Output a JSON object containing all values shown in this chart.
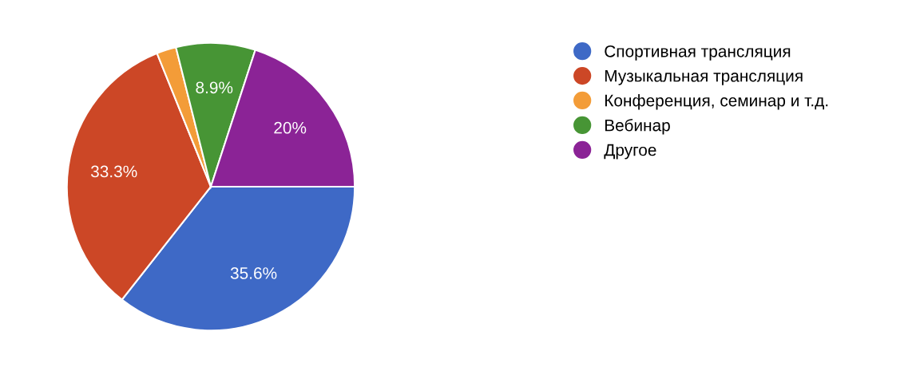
{
  "chart_data": {
    "type": "pie",
    "categories": [
      "Спортивная трансляция",
      "Музыкальная трансляция",
      "Конференция, семинар и т.д.",
      "Вебинар",
      "Другое"
    ],
    "values": [
      35.6,
      33.3,
      2.2,
      8.9,
      20
    ],
    "colors": [
      "#3e69c6",
      "#cc4726",
      "#f39c38",
      "#479535",
      "#8b2396"
    ],
    "value_labels": [
      "35.6%",
      "33.3%",
      null,
      "8.9%",
      "20%"
    ],
    "legend": "right"
  }
}
